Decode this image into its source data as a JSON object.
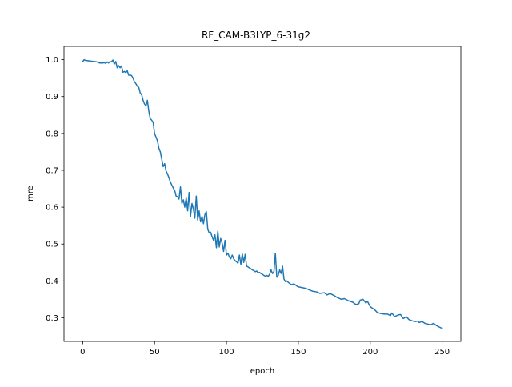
{
  "chart_data": {
    "type": "line",
    "title": "RF_CAM-B3LYP_6-31g2",
    "xlabel": "epoch",
    "ylabel": "mre",
    "xlim": [
      -13,
      263
    ],
    "ylim": [
      0.236,
      1.036
    ],
    "xticks": [
      0,
      50,
      100,
      150,
      200,
      250
    ],
    "yticks": [
      0.3,
      0.4,
      0.5,
      0.6,
      0.7,
      0.8,
      0.9,
      1.0
    ],
    "grid": false,
    "colors": {
      "line": "#1f77b4"
    },
    "series": [
      {
        "points": [
          [
            0,
            0.995
          ],
          [
            1,
            1.0
          ],
          [
            2,
            0.998
          ],
          [
            4,
            0.997
          ],
          [
            6,
            0.996
          ],
          [
            8,
            0.995
          ],
          [
            10,
            0.994
          ],
          [
            11,
            0.992
          ],
          [
            12,
            0.991
          ],
          [
            14,
            0.991
          ],
          [
            15,
            0.992
          ],
          [
            16,
            0.99
          ],
          [
            17,
            0.994
          ],
          [
            18,
            0.991
          ],
          [
            19,
            0.995
          ],
          [
            20,
            0.994
          ],
          [
            21,
            0.999
          ],
          [
            22,
            0.988
          ],
          [
            23,
            0.995
          ],
          [
            24,
            0.978
          ],
          [
            25,
            0.984
          ],
          [
            26,
            0.978
          ],
          [
            27,
            0.983
          ],
          [
            28,
            0.966
          ],
          [
            29,
            0.968
          ],
          [
            30,
            0.965
          ],
          [
            31,
            0.97
          ],
          [
            32,
            0.958
          ],
          [
            33,
            0.958
          ],
          [
            34,
            0.957
          ],
          [
            35,
            0.95
          ],
          [
            36,
            0.94
          ],
          [
            37,
            0.935
          ],
          [
            38,
            0.928
          ],
          [
            39,
            0.925
          ],
          [
            40,
            0.91
          ],
          [
            41,
            0.905
          ],
          [
            42,
            0.89
          ],
          [
            43,
            0.88
          ],
          [
            44,
            0.875
          ],
          [
            45,
            0.89
          ],
          [
            46,
            0.86
          ],
          [
            47,
            0.84
          ],
          [
            48,
            0.836
          ],
          [
            49,
            0.83
          ],
          [
            50,
            0.8
          ],
          [
            51,
            0.79
          ],
          [
            52,
            0.78
          ],
          [
            53,
            0.76
          ],
          [
            54,
            0.75
          ],
          [
            55,
            0.73
          ],
          [
            56,
            0.71
          ],
          [
            57,
            0.718
          ],
          [
            58,
            0.698
          ],
          [
            59,
            0.69
          ],
          [
            60,
            0.68
          ],
          [
            61,
            0.668
          ],
          [
            62,
            0.66
          ],
          [
            63,
            0.652
          ],
          [
            64,
            0.645
          ],
          [
            65,
            0.63
          ],
          [
            66,
            0.628
          ],
          [
            67,
            0.622
          ],
          [
            68,
            0.655
          ],
          [
            69,
            0.61
          ],
          [
            70,
            0.62
          ],
          [
            71,
            0.6
          ],
          [
            72,
            0.625
          ],
          [
            73,
            0.59
          ],
          [
            74,
            0.64
          ],
          [
            75,
            0.575
          ],
          [
            76,
            0.61
          ],
          [
            77,
            0.595
          ],
          [
            78,
            0.57
          ],
          [
            79,
            0.63
          ],
          [
            80,
            0.565
          ],
          [
            81,
            0.59
          ],
          [
            82,
            0.56
          ],
          [
            83,
            0.575
          ],
          [
            84,
            0.555
          ],
          [
            85,
            0.58
          ],
          [
            86,
            0.588
          ],
          [
            87,
            0.54
          ],
          [
            88,
            0.53
          ],
          [
            89,
            0.532
          ],
          [
            90,
            0.52
          ],
          [
            91,
            0.51
          ],
          [
            92,
            0.525
          ],
          [
            93,
            0.49
          ],
          [
            94,
            0.535
          ],
          [
            95,
            0.492
          ],
          [
            96,
            0.515
          ],
          [
            97,
            0.502
          ],
          [
            98,
            0.48
          ],
          [
            99,
            0.51
          ],
          [
            100,
            0.47
          ],
          [
            101,
            0.475
          ],
          [
            102,
            0.465
          ],
          [
            103,
            0.46
          ],
          [
            104,
            0.47
          ],
          [
            105,
            0.46
          ],
          [
            106,
            0.455
          ],
          [
            107,
            0.452
          ],
          [
            108,
            0.448
          ],
          [
            109,
            0.47
          ],
          [
            110,
            0.445
          ],
          [
            111,
            0.473
          ],
          [
            112,
            0.45
          ],
          [
            113,
            0.472
          ],
          [
            114,
            0.44
          ],
          [
            115,
            0.438
          ],
          [
            116,
            0.435
          ],
          [
            117,
            0.433
          ],
          [
            118,
            0.43
          ],
          [
            119,
            0.428
          ],
          [
            120,
            0.425
          ],
          [
            121,
            0.427
          ],
          [
            122,
            0.422
          ],
          [
            123,
            0.423
          ],
          [
            124,
            0.42
          ],
          [
            125,
            0.418
          ],
          [
            126,
            0.415
          ],
          [
            127,
            0.413
          ],
          [
            128,
            0.415
          ],
          [
            129,
            0.412
          ],
          [
            130,
            0.418
          ],
          [
            131,
            0.43
          ],
          [
            132,
            0.42
          ],
          [
            133,
            0.425
          ],
          [
            134,
            0.475
          ],
          [
            135,
            0.41
          ],
          [
            136,
            0.415
          ],
          [
            137,
            0.43
          ],
          [
            138,
            0.42
          ],
          [
            139,
            0.44
          ],
          [
            140,
            0.405
          ],
          [
            141,
            0.398
          ],
          [
            142,
            0.4
          ],
          [
            143,
            0.396
          ],
          [
            145,
            0.39
          ],
          [
            147,
            0.392
          ],
          [
            149,
            0.386
          ],
          [
            150,
            0.384
          ],
          [
            155,
            0.38
          ],
          [
            160,
            0.372
          ],
          [
            163,
            0.37
          ],
          [
            165,
            0.366
          ],
          [
            168,
            0.368
          ],
          [
            170,
            0.362
          ],
          [
            172,
            0.366
          ],
          [
            175,
            0.36
          ],
          [
            177,
            0.355
          ],
          [
            180,
            0.35
          ],
          [
            182,
            0.352
          ],
          [
            185,
            0.346
          ],
          [
            188,
            0.342
          ],
          [
            190,
            0.336
          ],
          [
            192,
            0.338
          ],
          [
            193,
            0.348
          ],
          [
            195,
            0.35
          ],
          [
            197,
            0.34
          ],
          [
            198,
            0.345
          ],
          [
            200,
            0.33
          ],
          [
            203,
            0.322
          ],
          [
            205,
            0.314
          ],
          [
            208,
            0.311
          ],
          [
            210,
            0.31
          ],
          [
            212,
            0.31
          ],
          [
            214,
            0.306
          ],
          [
            215,
            0.313
          ],
          [
            217,
            0.303
          ],
          [
            219,
            0.307
          ],
          [
            221,
            0.309
          ],
          [
            223,
            0.298
          ],
          [
            225,
            0.303
          ],
          [
            227,
            0.295
          ],
          [
            229,
            0.292
          ],
          [
            231,
            0.29
          ],
          [
            233,
            0.291
          ],
          [
            234,
            0.287
          ],
          [
            236,
            0.29
          ],
          [
            238,
            0.285
          ],
          [
            240,
            0.283
          ],
          [
            242,
            0.281
          ],
          [
            244,
            0.285
          ],
          [
            246,
            0.279
          ],
          [
            247,
            0.277
          ],
          [
            248,
            0.275
          ],
          [
            249,
            0.273
          ],
          [
            250,
            0.272
          ]
        ]
      }
    ]
  }
}
